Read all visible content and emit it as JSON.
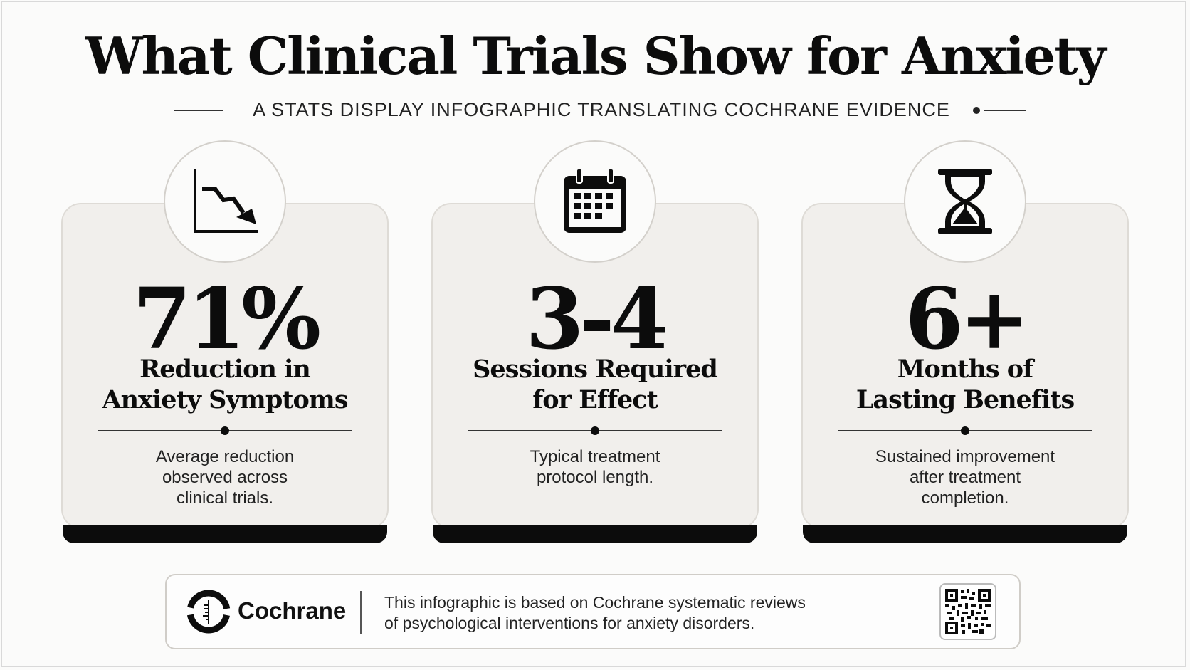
{
  "header": {
    "title": "What Clinical Trials Show for Anxiety",
    "subtitle": "A STATS DISPLAY INFOGRAPHIC TRANSLATING COCHRANE EVIDENCE"
  },
  "cards": [
    {
      "icon": "trend-down-chart-icon",
      "stat": "71%",
      "label_line1": "Reduction in",
      "label_line2": "Anxiety Symptoms",
      "desc_line1": "Average reduction",
      "desc_line2": "observed across",
      "desc_line3": "clinical trials."
    },
    {
      "icon": "calendar-icon",
      "stat": "3-4",
      "label_line1": "Sessions Required",
      "label_line2": "for Effect",
      "desc_line1": "Typical treatment",
      "desc_line2": "protocol length.",
      "desc_line3": ""
    },
    {
      "icon": "hourglass-icon",
      "stat": "6+",
      "label_line1": "Months of",
      "label_line2": "Lasting Benefits",
      "desc_line1": "Sustained improvement",
      "desc_line2": "after treatment",
      "desc_line3": "completion."
    }
  ],
  "footer": {
    "brand": "Cochrane",
    "text_line1": "This infographic is based on Cochrane systematic reviews",
    "text_line2": "of psychological interventions for anxiety disorders.",
    "logo_icon": "cochrane-logo-icon",
    "qr_icon": "qr-code-icon"
  },
  "colors": {
    "background": "#fbfbfa",
    "card": "#f1efec",
    "ink": "#0c0c0c"
  }
}
